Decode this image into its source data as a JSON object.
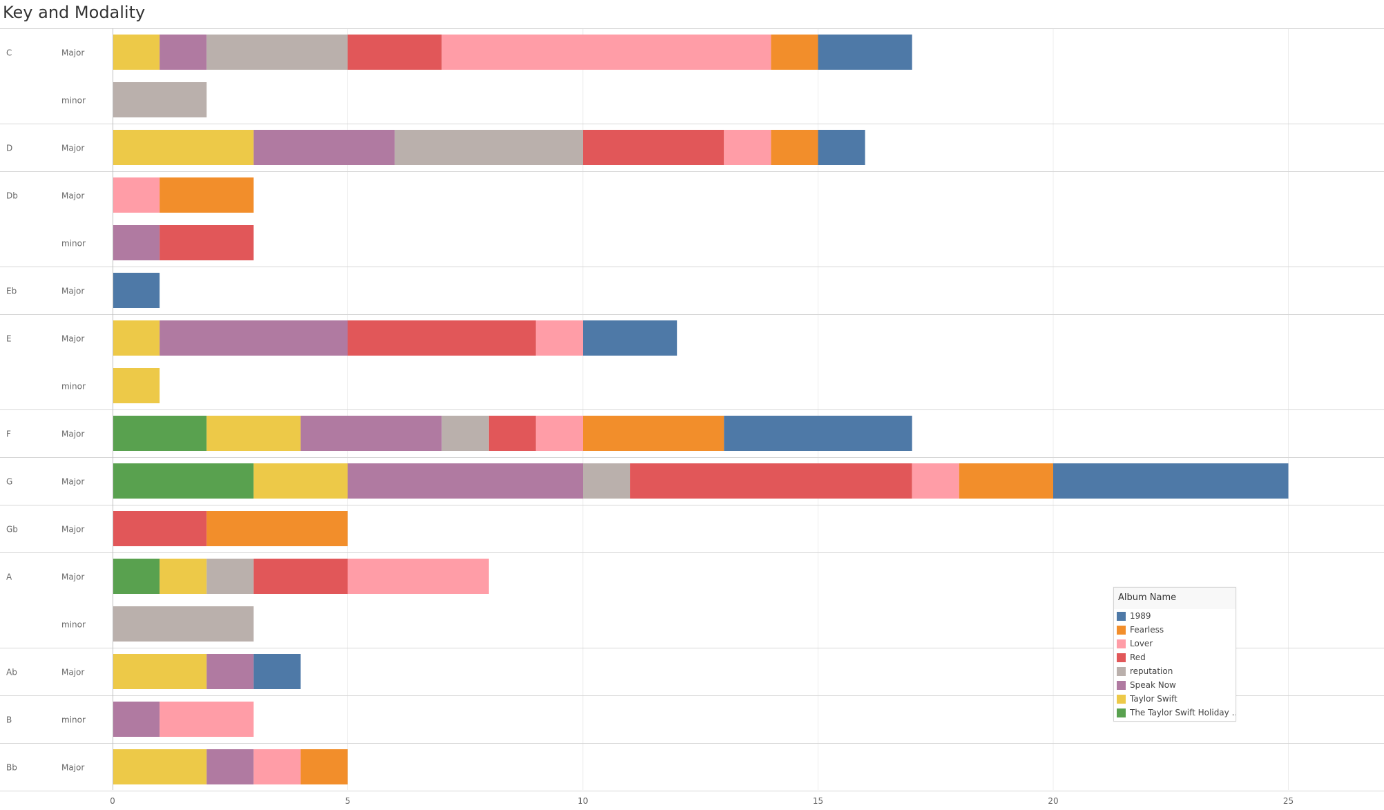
{
  "title": "Key and Modality",
  "chart_data": {
    "type": "bar",
    "orientation": "horizontal",
    "stacked": true,
    "title": "Key and Modality",
    "xlim": [
      0,
      27
    ],
    "x_ticks": [
      0,
      5,
      10,
      15,
      20,
      25
    ],
    "grid": true,
    "legend_placement": "bottom-right",
    "legend_title": "Album Name",
    "series": [
      {
        "name": "1989",
        "color": "#4e79a7"
      },
      {
        "name": "Fearless",
        "color": "#f28e2b"
      },
      {
        "name": "Lover",
        "color": "#ff9da7"
      },
      {
        "name": "Red",
        "color": "#e15759"
      },
      {
        "name": "reputation",
        "color": "#bab0ac"
      },
      {
        "name": "Speak Now",
        "color": "#b07aa1"
      },
      {
        "name": "Taylor Swift",
        "color": "#edc948"
      },
      {
        "name": "The Taylor Swift Holiday ..",
        "color": "#59a14f"
      }
    ],
    "stack_order": [
      "The Taylor Swift Holiday ..",
      "Taylor Swift",
      "Speak Now",
      "reputation",
      "Red",
      "Lover",
      "Fearless",
      "1989"
    ],
    "groups": [
      {
        "key": "C",
        "rows": [
          {
            "mode": "Major",
            "values": {
              "Taylor Swift": 1,
              "Speak Now": 1,
              "reputation": 3,
              "Red": 2,
              "Lover": 7,
              "Fearless": 1,
              "1989": 2
            }
          },
          {
            "mode": "minor",
            "values": {
              "reputation": 2
            }
          }
        ]
      },
      {
        "key": "D",
        "rows": [
          {
            "mode": "Major",
            "values": {
              "Taylor Swift": 3,
              "Speak Now": 3,
              "reputation": 4,
              "Red": 3,
              "Lover": 1,
              "Fearless": 1,
              "1989": 1
            }
          }
        ]
      },
      {
        "key": "Db",
        "rows": [
          {
            "mode": "Major",
            "values": {
              "Lover": 1,
              "Fearless": 2
            }
          },
          {
            "mode": "minor",
            "values": {
              "Speak Now": 1,
              "Red": 2
            }
          }
        ]
      },
      {
        "key": "Eb",
        "rows": [
          {
            "mode": "Major",
            "values": {
              "1989": 1
            }
          }
        ]
      },
      {
        "key": "E",
        "rows": [
          {
            "mode": "Major",
            "values": {
              "Taylor Swift": 1,
              "Speak Now": 4,
              "Red": 4,
              "Lover": 1,
              "1989": 2
            }
          },
          {
            "mode": "minor",
            "values": {
              "Taylor Swift": 1
            }
          }
        ]
      },
      {
        "key": "F",
        "rows": [
          {
            "mode": "Major",
            "values": {
              "The Taylor Swift Holiday ..": 2,
              "Taylor Swift": 2,
              "Speak Now": 3,
              "reputation": 1,
              "Red": 1,
              "Lover": 1,
              "Fearless": 3,
              "1989": 4
            }
          }
        ]
      },
      {
        "key": "G",
        "rows": [
          {
            "mode": "Major",
            "values": {
              "The Taylor Swift Holiday ..": 3,
              "Taylor Swift": 2,
              "Speak Now": 5,
              "reputation": 1,
              "Red": 6,
              "Lover": 1,
              "Fearless": 2,
              "1989": 5
            }
          }
        ]
      },
      {
        "key": "Gb",
        "rows": [
          {
            "mode": "Major",
            "values": {
              "Red": 2,
              "Fearless": 3
            }
          }
        ]
      },
      {
        "key": "A",
        "rows": [
          {
            "mode": "Major",
            "values": {
              "The Taylor Swift Holiday ..": 1,
              "Taylor Swift": 1,
              "reputation": 1,
              "Red": 2,
              "Lover": 3
            }
          },
          {
            "mode": "minor",
            "values": {
              "reputation": 3
            }
          }
        ]
      },
      {
        "key": "Ab",
        "rows": [
          {
            "mode": "Major",
            "values": {
              "Taylor Swift": 2,
              "Speak Now": 1,
              "1989": 1
            }
          }
        ]
      },
      {
        "key": "B",
        "rows": [
          {
            "mode": "minor",
            "values": {
              "Speak Now": 1,
              "Lover": 2
            }
          }
        ]
      },
      {
        "key": "Bb",
        "rows": [
          {
            "mode": "Major",
            "values": {
              "Taylor Swift": 2,
              "Speak Now": 1,
              "Lover": 1,
              "Fearless": 1
            }
          }
        ]
      }
    ]
  }
}
